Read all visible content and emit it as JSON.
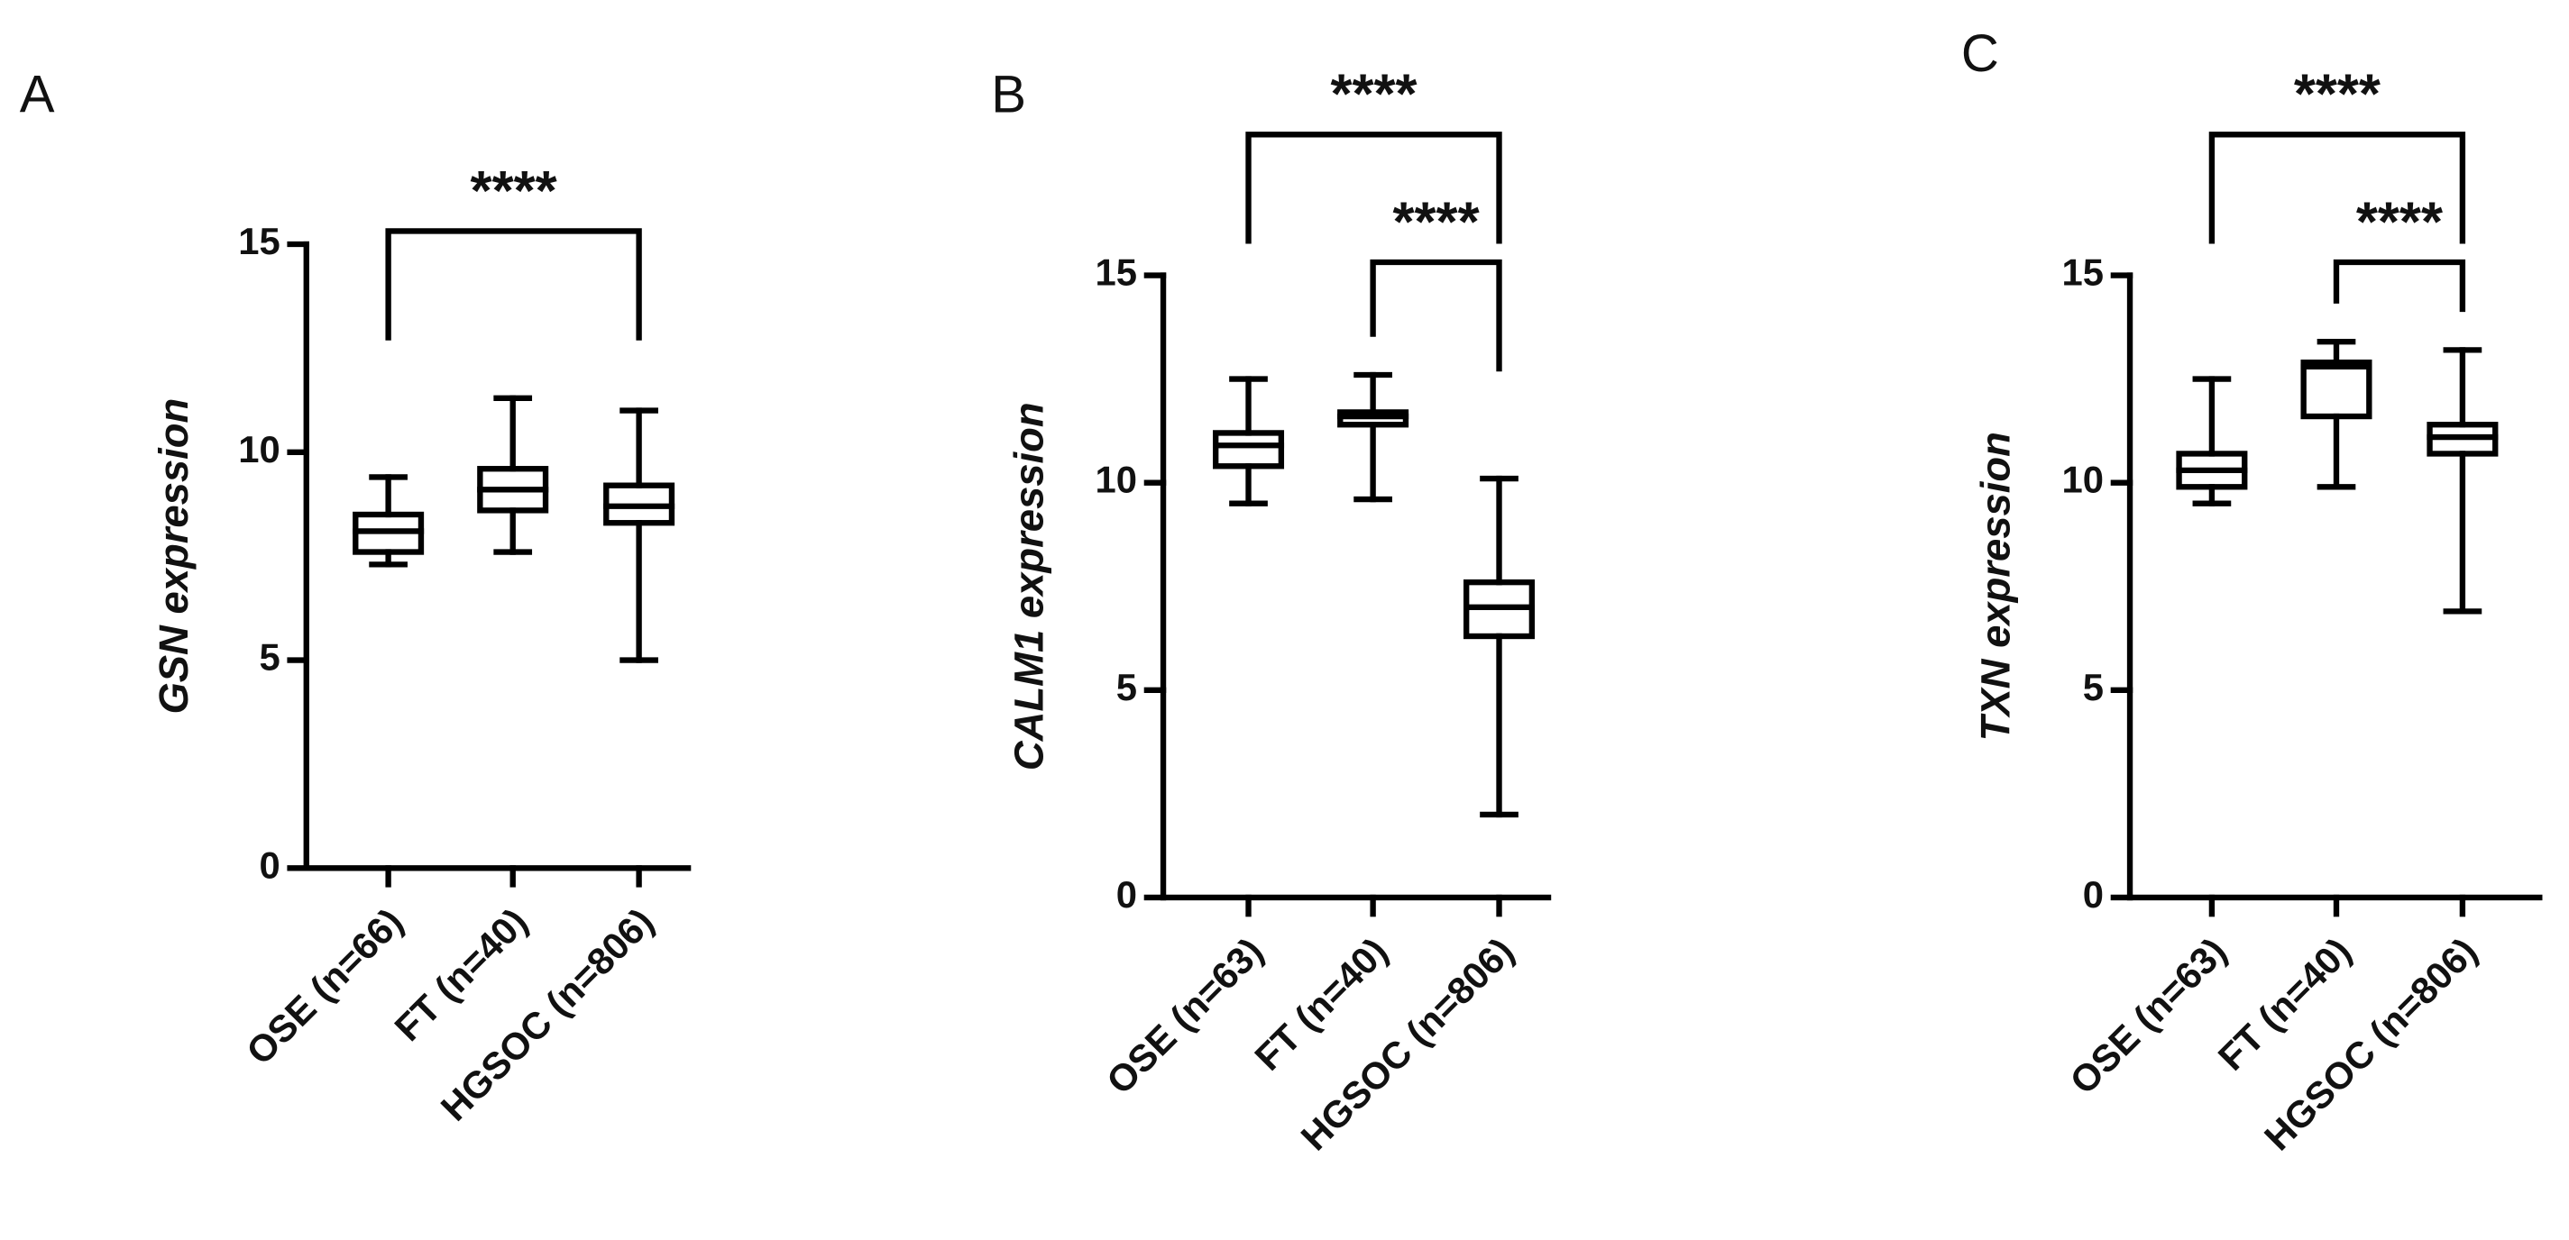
{
  "chart_data": [
    {
      "type": "box",
      "panel": "A",
      "ylabel": "GSN expression",
      "categories": [
        "OSE (n=66)",
        "FT (n=40)",
        "HGSOC (n=806)"
      ],
      "boxes": [
        {
          "min": 7.3,
          "q1": 7.6,
          "median": 8.1,
          "q3": 8.5,
          "max": 9.4
        },
        {
          "min": 7.6,
          "q1": 8.6,
          "median": 9.1,
          "q3": 9.6,
          "max": 11.3
        },
        {
          "min": 5.0,
          "q1": 8.3,
          "median": 8.7,
          "q3": 9.2,
          "max": 11.0
        }
      ],
      "ylim": [
        0,
        15
      ],
      "yticks": [
        0,
        5,
        10,
        15
      ],
      "comparisons": [
        {
          "groups": [
            "OSE (n=66)",
            "HGSOC (n=806)"
          ],
          "label": "****"
        }
      ]
    },
    {
      "type": "box",
      "panel": "B",
      "ylabel": "CALM1 expression",
      "categories": [
        "OSE (n=63)",
        "FT (n=40)",
        "HGSOC (n=806)"
      ],
      "boxes": [
        {
          "min": 9.5,
          "q1": 10.4,
          "median": 10.9,
          "q3": 11.2,
          "max": 12.5
        },
        {
          "min": 9.6,
          "q1": 11.4,
          "median": 11.6,
          "q3": 11.7,
          "max": 12.6
        },
        {
          "min": 2.0,
          "q1": 6.3,
          "median": 7.0,
          "q3": 7.6,
          "max": 10.1
        }
      ],
      "ylim": [
        0,
        15
      ],
      "yticks": [
        0,
        5,
        10,
        15
      ],
      "comparisons": [
        {
          "groups": [
            "OSE (n=63)",
            "HGSOC (n=806)"
          ],
          "label": "****"
        },
        {
          "groups": [
            "FT (n=40)",
            "HGSOC (n=806)"
          ],
          "label": "****"
        }
      ]
    },
    {
      "type": "box",
      "panel": "C",
      "ylabel": "TXN expression",
      "categories": [
        "OSE (n=63)",
        "FT (n=40)",
        "HGSOC (n=806)"
      ],
      "boxes": [
        {
          "min": 9.5,
          "q1": 9.9,
          "median": 10.3,
          "q3": 10.7,
          "max": 12.5
        },
        {
          "min": 9.9,
          "q1": 11.6,
          "median": 12.8,
          "q3": 12.9,
          "max": 13.4
        },
        {
          "min": 6.9,
          "q1": 10.7,
          "median": 11.1,
          "q3": 11.4,
          "max": 13.2
        }
      ],
      "ylim": [
        0,
        15
      ],
      "yticks": [
        0,
        5,
        10,
        15
      ],
      "comparisons": [
        {
          "groups": [
            "OSE (n=63)",
            "HGSOC (n=806)"
          ],
          "label": "****"
        },
        {
          "groups": [
            "FT (n=40)",
            "HGSOC (n=806)"
          ],
          "label": "****"
        }
      ]
    }
  ]
}
